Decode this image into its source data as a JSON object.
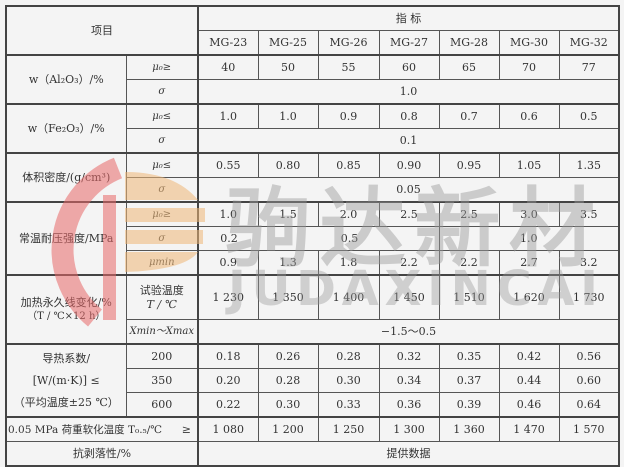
{
  "header": {
    "item": "项目",
    "index": "指 标",
    "grades": [
      "MG-23",
      "MG-25",
      "MG-26",
      "MG-27",
      "MG-28",
      "MG-30",
      "MG-32"
    ]
  },
  "al": {
    "label": "w（Al₂O₃）/%",
    "mu_sym": "μ₀≥",
    "sigma_sym": "σ",
    "mu": [
      "40",
      "50",
      "55",
      "60",
      "65",
      "70",
      "77"
    ],
    "sigma": "1.0"
  },
  "fe": {
    "label": "w（Fe₂O₃）/%",
    "mu_sym": "μ₀≤",
    "sigma_sym": "σ",
    "mu": [
      "1.0",
      "1.0",
      "0.9",
      "0.8",
      "0.7",
      "0.6",
      "0.5"
    ],
    "sigma": "0.1"
  },
  "density": {
    "label": "体积密度/(g/cm³)",
    "mu_sym": "μ₀≤",
    "sigma_sym": "σ",
    "mu": [
      "0.55",
      "0.80",
      "0.85",
      "0.90",
      "0.95",
      "1.05",
      "1.35"
    ],
    "sigma": "0.05"
  },
  "strength": {
    "label": "常温耐压强度/MPa",
    "mu_sym": "μ₀≥",
    "sigma_sym": "σ",
    "min_sym": "μmin",
    "mu": [
      "1.0",
      "1.5",
      "2.0",
      "2.5",
      "2.5",
      "3.0",
      "3.5"
    ],
    "sigma": [
      "0.2",
      "0.5",
      "1.0"
    ],
    "min": [
      "0.9",
      "1.3",
      "1.8",
      "2.2",
      "2.2",
      "2.7",
      "3.2"
    ]
  },
  "heating": {
    "label1": "加热永久线变化/%",
    "label2": "（T / ℃×12 h）",
    "temp_label1": "试验温度",
    "temp_label2": "T / ℃",
    "temps": [
      "1 230",
      "1 350",
      "1 400",
      "1 450",
      "1 510",
      "1 620",
      "1 730"
    ],
    "range_sym": "Xmin～Xmax",
    "range": "−1.5～0.5"
  },
  "conductivity": {
    "label1": "导热系数/",
    "label2": "[W/(m·K)]  ≤",
    "label3": "（平均温度±25 ℃）",
    "rows": [
      {
        "temp": "200",
        "values": [
          "0.18",
          "0.26",
          "0.28",
          "0.32",
          "0.35",
          "0.42",
          "0.56"
        ]
      },
      {
        "temp": "350",
        "values": [
          "0.20",
          "0.28",
          "0.30",
          "0.34",
          "0.37",
          "0.44",
          "0.60"
        ]
      },
      {
        "temp": "600",
        "values": [
          "0.22",
          "0.30",
          "0.33",
          "0.36",
          "0.39",
          "0.46",
          "0.64"
        ]
      }
    ]
  },
  "load": {
    "label": "0.05 MPa 荷重软化温度 T₀.₅/℃",
    "ge": "≥",
    "values": [
      "1 080",
      "1 200",
      "1 250",
      "1 300",
      "1 360",
      "1 470",
      "1 570"
    ]
  },
  "spalling": {
    "label": "抗剥落性/%",
    "value": "提供数据"
  },
  "watermark": {
    "cn": "驹达新材",
    "en": "JUDAXINCAI",
    "colors": {
      "red": "#e86a6a",
      "orange": "#f0b878",
      "grey": "#9a9a9a"
    }
  }
}
